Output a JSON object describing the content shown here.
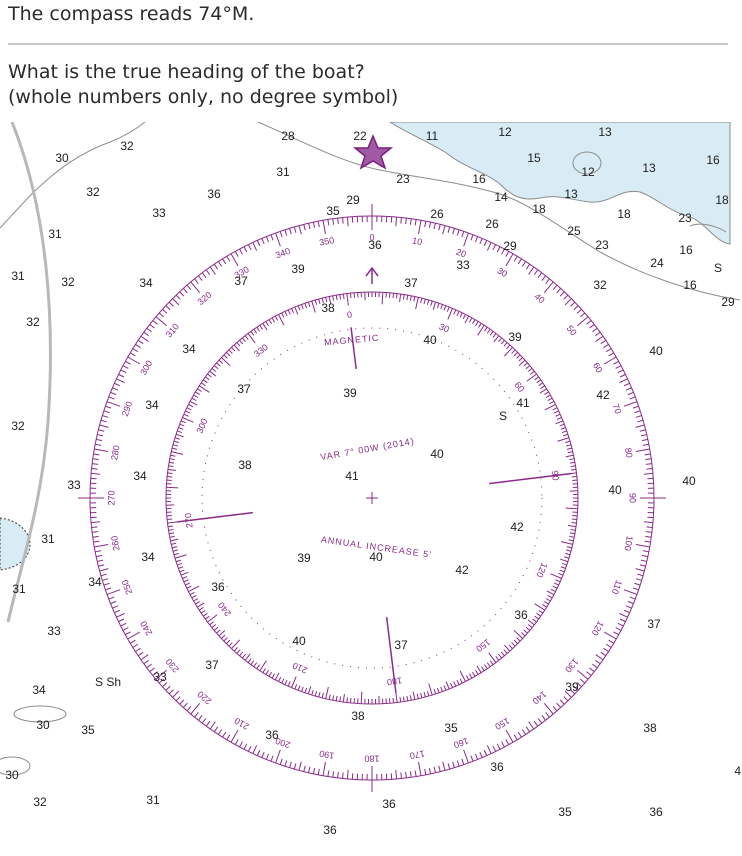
{
  "question": {
    "line1": "The compass reads 74°M.",
    "prompt_line1": "What is the true heading of the boat?",
    "prompt_line2": "(whole numbers only, no degree symbol)"
  },
  "compass_rose": {
    "magnetic_label": "MAGNETIC",
    "variation_text": "VAR 7° 00W (2014)",
    "annual_text": "ANNUAL INCREASE 5'",
    "outer_labels": [
      "0",
      "10",
      "20",
      "30",
      "40",
      "50",
      "60",
      "70",
      "80",
      "90",
      "100",
      "110",
      "120",
      "130",
      "140",
      "150",
      "160",
      "170",
      "180",
      "190",
      "200",
      "210",
      "220",
      "230",
      "240",
      "250",
      "260",
      "270",
      "280",
      "290",
      "300",
      "310",
      "320",
      "330",
      "340",
      "350"
    ],
    "inner_labels": [
      "0",
      "30",
      "60",
      "90",
      "120",
      "150",
      "180",
      "210",
      "240",
      "270",
      "300",
      "330"
    ],
    "colors": {
      "rose": "#8a2a8a",
      "shallow_water": "#d9ecf5",
      "coast": "#8c8c8c"
    }
  },
  "depths": [
    {
      "t": "30"
    },
    {
      "t": "32"
    },
    {
      "t": "28"
    },
    {
      "t": "22"
    },
    {
      "t": "11"
    },
    {
      "t": "12"
    },
    {
      "t": "15"
    },
    {
      "t": "13"
    },
    {
      "t": "16"
    },
    {
      "t": "13"
    },
    {
      "t": "31"
    },
    {
      "t": "23"
    },
    {
      "t": "16"
    },
    {
      "t": "14"
    },
    {
      "t": "12"
    },
    {
      "t": "13"
    },
    {
      "t": "18"
    },
    {
      "t": "16"
    },
    {
      "t": "18"
    },
    {
      "t": "32"
    },
    {
      "t": "36"
    },
    {
      "t": "29"
    },
    {
      "t": "35"
    },
    {
      "t": "26"
    },
    {
      "t": "26"
    },
    {
      "t": "25"
    },
    {
      "t": "23"
    },
    {
      "t": "23"
    },
    {
      "t": "18"
    },
    {
      "t": "33"
    },
    {
      "t": "31"
    },
    {
      "t": "36"
    },
    {
      "t": "29"
    },
    {
      "t": "24"
    },
    {
      "t": "16"
    },
    {
      "t": "31"
    },
    {
      "t": "32"
    },
    {
      "t": "34"
    },
    {
      "t": "39"
    },
    {
      "t": "37"
    },
    {
      "t": "33"
    },
    {
      "t": "32"
    },
    {
      "t": "29"
    },
    {
      "t": "38"
    },
    {
      "t": "32"
    },
    {
      "t": "34"
    },
    {
      "t": "37"
    },
    {
      "t": "40"
    },
    {
      "t": "39"
    },
    {
      "t": "40"
    },
    {
      "t": "37"
    },
    {
      "t": "39"
    },
    {
      "t": "41"
    },
    {
      "t": "42"
    },
    {
      "t": "34"
    },
    {
      "t": "32"
    },
    {
      "t": "38"
    },
    {
      "t": "40"
    },
    {
      "t": "33"
    },
    {
      "t": "41"
    },
    {
      "t": "34"
    },
    {
      "t": "40"
    },
    {
      "t": "40"
    },
    {
      "t": "31"
    },
    {
      "t": "42"
    },
    {
      "t": "34"
    },
    {
      "t": "39"
    },
    {
      "t": "40"
    },
    {
      "t": "42"
    },
    {
      "t": "36"
    },
    {
      "t": "31"
    },
    {
      "t": "34"
    },
    {
      "t": "36"
    },
    {
      "t": "37"
    },
    {
      "t": "33"
    },
    {
      "t": "40"
    },
    {
      "t": "37"
    },
    {
      "t": "37"
    },
    {
      "t": "33"
    },
    {
      "t": "39"
    },
    {
      "t": "34"
    },
    {
      "t": "38"
    },
    {
      "t": "30"
    },
    {
      "t": "35"
    },
    {
      "t": "36"
    },
    {
      "t": "35"
    },
    {
      "t": "38"
    },
    {
      "t": "36"
    },
    {
      "t": "30"
    },
    {
      "t": "41"
    },
    {
      "t": "32"
    },
    {
      "t": "31"
    },
    {
      "t": "36"
    },
    {
      "t": "35"
    },
    {
      "t": "36"
    },
    {
      "t": "36"
    },
    {
      "t": "S Sh"
    },
    {
      "t": "S"
    },
    {
      "t": "S"
    }
  ]
}
